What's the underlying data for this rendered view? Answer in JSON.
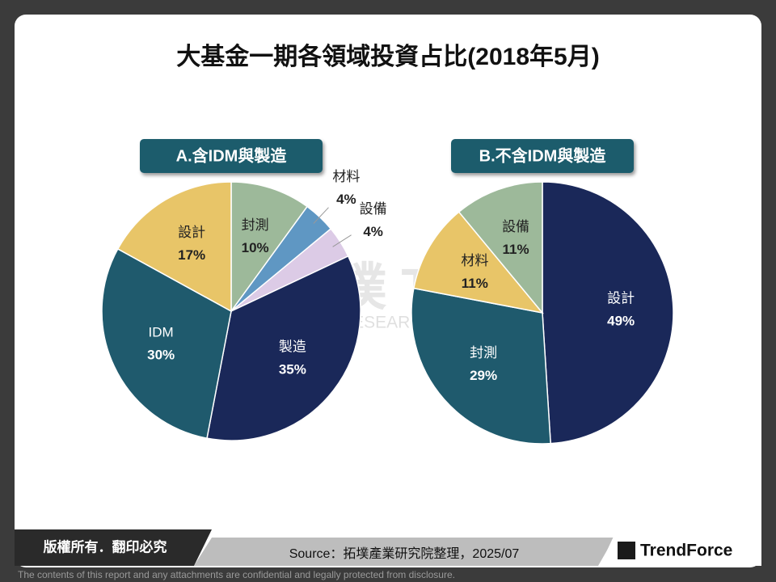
{
  "title": "大基金一期各領域投資占比(2018年5月)",
  "watermark": {
    "logo": "拓墣 TRI",
    "name": "TOPOLOGY RESEARCH INSTITUTE"
  },
  "footer": {
    "copyright": "版權所有．翻印必究",
    "source": "Source：拓墣產業研究院整理，2025/07",
    "brand": "TrendForce",
    "disclaimer": "The contents of this report and any attachments are confidential and legally protected from disclosure."
  },
  "chart_data": [
    {
      "type": "pie",
      "title": "A.含IDM與製造",
      "categories": [
        "封測",
        "材料",
        "設備",
        "製造",
        "IDM",
        "設計"
      ],
      "values": [
        10,
        4,
        4,
        35,
        30,
        17
      ],
      "value_labels": [
        "10%",
        "4%",
        "4%",
        "35%",
        "30%",
        "17%"
      ],
      "colors": [
        "#9db99a",
        "#5f97c3",
        "#dccbe6",
        "#1a2859",
        "#1f5a6d",
        "#e8c568"
      ]
    },
    {
      "type": "pie",
      "title": "B.不含IDM與製造",
      "categories": [
        "設計",
        "封測",
        "材料",
        "設備"
      ],
      "values": [
        49,
        29,
        11,
        11
      ],
      "value_labels": [
        "49%",
        "29%",
        "11%",
        "11%"
      ],
      "colors": [
        "#1a2859",
        "#1f5a6d",
        "#e8c568",
        "#9db99a"
      ]
    }
  ]
}
